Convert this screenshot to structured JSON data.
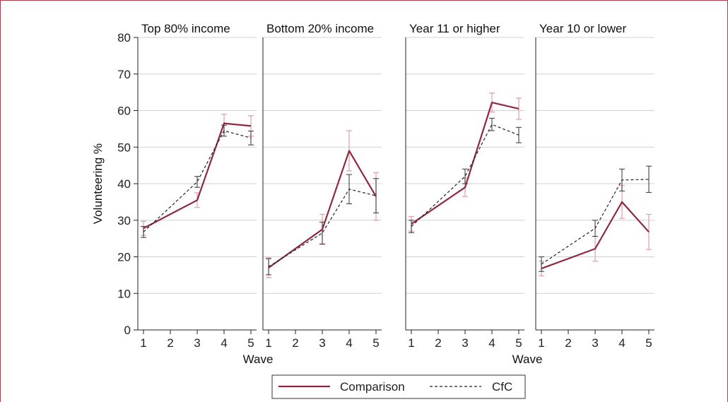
{
  "chart_data": {
    "type": "line",
    "ylabel": "Volunteering %",
    "xlabel": "Wave",
    "ylim": [
      0,
      80
    ],
    "yticks": [
      0,
      10,
      20,
      30,
      40,
      50,
      60,
      70,
      80
    ],
    "xticks": [
      1,
      2,
      3,
      4,
      5
    ],
    "grid": true,
    "legend_position": "bottom",
    "colors": {
      "comparison": "#8e2a3d",
      "comparison_err": "#e3a3ad",
      "cfc": "#222222",
      "grid": "#d0d0d0"
    },
    "series_names": [
      "Comparison",
      "CfC"
    ],
    "panels": [
      {
        "title": "Top 80% income",
        "comparison": {
          "x": [
            1,
            3,
            4,
            5
          ],
          "y": [
            27.8,
            35.5,
            56.5,
            55.8
          ],
          "lo": [
            25.9,
            33.5,
            54.0,
            53.0
          ],
          "hi": [
            29.7,
            37.5,
            59.0,
            58.6
          ]
        },
        "cfc": {
          "x": [
            1,
            3,
            4,
            5
          ],
          "y": [
            26.8,
            40.5,
            54.5,
            52.5
          ],
          "lo": [
            25.3,
            39.0,
            53.0,
            50.6
          ],
          "hi": [
            28.3,
            42.0,
            56.0,
            54.4
          ]
        }
      },
      {
        "title": "Bottom 20% income",
        "comparison": {
          "x": [
            1,
            3,
            4,
            5
          ],
          "y": [
            17.0,
            27.5,
            49.0,
            36.5
          ],
          "lo": [
            14.3,
            23.4,
            43.5,
            30.0
          ],
          "hi": [
            19.7,
            31.6,
            54.5,
            43.0
          ]
        },
        "cfc": {
          "x": [
            1,
            3,
            4,
            5
          ],
          "y": [
            17.3,
            26.5,
            38.5,
            36.7
          ],
          "lo": [
            15.1,
            23.5,
            34.5,
            32.0
          ],
          "hi": [
            19.5,
            29.5,
            42.5,
            41.4
          ]
        }
      },
      {
        "title": "Year 11 or higher",
        "comparison": {
          "x": [
            1,
            3,
            4,
            5
          ],
          "y": [
            29.0,
            39.0,
            62.2,
            60.5
          ],
          "lo": [
            27.0,
            36.5,
            59.6,
            57.6
          ],
          "hi": [
            31.0,
            41.5,
            64.8,
            63.4
          ]
        },
        "cfc": {
          "x": [
            1,
            3,
            4,
            5
          ],
          "y": [
            28.3,
            42.0,
            56.2,
            53.3
          ],
          "lo": [
            26.6,
            40.0,
            54.5,
            51.2
          ],
          "hi": [
            30.0,
            44.0,
            57.9,
            55.4
          ]
        }
      },
      {
        "title": "Year 10 or lower",
        "comparison": {
          "x": [
            1,
            3,
            4,
            5
          ],
          "y": [
            16.8,
            22.2,
            35.0,
            26.8
          ],
          "lo": [
            14.8,
            18.8,
            30.5,
            22.0
          ],
          "hi": [
            18.8,
            25.6,
            39.5,
            31.6
          ]
        },
        "cfc": {
          "x": [
            1,
            3,
            4,
            5
          ],
          "y": [
            18.0,
            27.8,
            41.0,
            41.2
          ],
          "lo": [
            16.0,
            25.6,
            38.0,
            37.6
          ],
          "hi": [
            20.0,
            30.0,
            44.0,
            44.8
          ]
        }
      }
    ]
  }
}
